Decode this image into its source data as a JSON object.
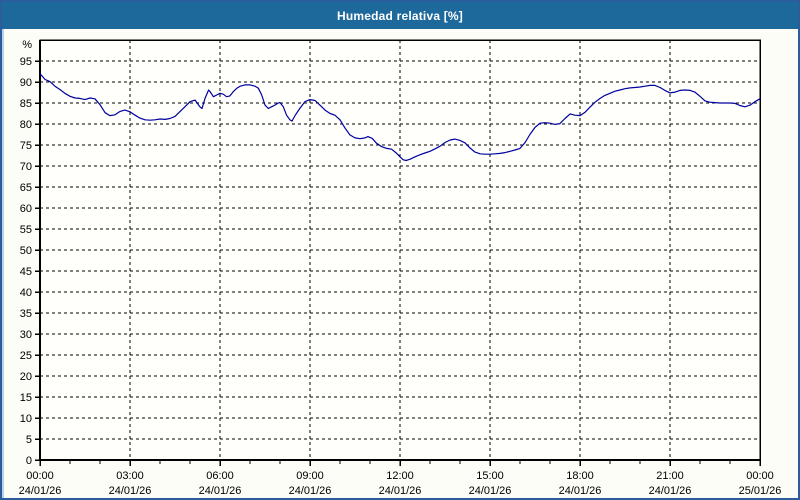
{
  "window": {
    "title": "Humedad relativa [%]",
    "titlebar_color": "#1e699c",
    "title_text_color": "#ffffff",
    "border_color": "#2b5c9c",
    "background_color": "#fbfdf6"
  },
  "chart_data": {
    "type": "line",
    "title": "Humedad relativa [%]",
    "ylabel": "%",
    "xlabel": "",
    "unit_label": "%",
    "xlim": [
      0,
      24
    ],
    "ylim": [
      0,
      100
    ],
    "y_tick_step": 5,
    "y_tick_max_labeled": 95,
    "x_major_tick_hours": 3,
    "x_minor_tick_hours": 1,
    "grid": {
      "style": "dashed",
      "color": "#000000",
      "horizontal": true,
      "vertical": true
    },
    "legend": "none",
    "line_color": "#0000a0",
    "plot_background": "#fffffb",
    "x_ticks": [
      {
        "hour": 0,
        "time": "00:00",
        "date": "24/01/26"
      },
      {
        "hour": 3,
        "time": "03:00",
        "date": "24/01/26"
      },
      {
        "hour": 6,
        "time": "06:00",
        "date": "24/01/26"
      },
      {
        "hour": 9,
        "time": "09:00",
        "date": "24/01/26"
      },
      {
        "hour": 12,
        "time": "12:00",
        "date": "24/01/26"
      },
      {
        "hour": 15,
        "time": "15:00",
        "date": "24/01/26"
      },
      {
        "hour": 18,
        "time": "18:00",
        "date": "24/01/26"
      },
      {
        "hour": 21,
        "time": "21:00",
        "date": "24/01/26"
      },
      {
        "hour": 24,
        "time": "00:00",
        "date": "25/01/26"
      }
    ],
    "series": [
      {
        "name": "Humedad relativa",
        "points": [
          [
            0.0,
            92.0
          ],
          [
            0.17,
            90.6
          ],
          [
            0.33,
            90.1
          ],
          [
            0.5,
            89.0
          ],
          [
            0.67,
            88.2
          ],
          [
            0.83,
            87.3
          ],
          [
            1.0,
            86.6
          ],
          [
            1.17,
            86.2
          ],
          [
            1.33,
            86.1
          ],
          [
            1.5,
            85.8
          ],
          [
            1.67,
            86.2
          ],
          [
            1.83,
            86.0
          ],
          [
            2.0,
            84.6
          ],
          [
            2.17,
            82.7
          ],
          [
            2.33,
            82.0
          ],
          [
            2.5,
            82.2
          ],
          [
            2.67,
            83.0
          ],
          [
            2.83,
            83.3
          ],
          [
            3.0,
            82.9
          ],
          [
            3.17,
            82.1
          ],
          [
            3.33,
            81.4
          ],
          [
            3.5,
            81.0
          ],
          [
            3.67,
            80.9
          ],
          [
            3.83,
            81.0
          ],
          [
            4.0,
            81.2
          ],
          [
            4.17,
            81.1
          ],
          [
            4.33,
            81.3
          ],
          [
            4.5,
            81.8
          ],
          [
            4.67,
            83.0
          ],
          [
            4.83,
            84.1
          ],
          [
            5.0,
            85.3
          ],
          [
            5.17,
            85.7
          ],
          [
            5.33,
            84.1
          ],
          [
            5.4,
            83.7
          ],
          [
            5.5,
            86.1
          ],
          [
            5.62,
            88.1
          ],
          [
            5.67,
            87.7
          ],
          [
            5.78,
            86.5
          ],
          [
            5.89,
            86.9
          ],
          [
            6.0,
            87.3
          ],
          [
            6.11,
            87.1
          ],
          [
            6.22,
            86.5
          ],
          [
            6.33,
            86.7
          ],
          [
            6.44,
            87.7
          ],
          [
            6.56,
            88.5
          ],
          [
            6.67,
            89.0
          ],
          [
            6.83,
            89.3
          ],
          [
            7.0,
            89.3
          ],
          [
            7.17,
            89.0
          ],
          [
            7.28,
            88.5
          ],
          [
            7.39,
            86.9
          ],
          [
            7.5,
            84.5
          ],
          [
            7.61,
            83.7
          ],
          [
            7.72,
            84.1
          ],
          [
            7.83,
            84.5
          ],
          [
            7.94,
            85.0
          ],
          [
            8.0,
            85.1
          ],
          [
            8.11,
            84.1
          ],
          [
            8.22,
            82.1
          ],
          [
            8.33,
            81.0
          ],
          [
            8.4,
            80.7
          ],
          [
            8.5,
            82.0
          ],
          [
            8.67,
            83.8
          ],
          [
            8.83,
            85.3
          ],
          [
            9.0,
            85.8
          ],
          [
            9.17,
            85.6
          ],
          [
            9.33,
            84.5
          ],
          [
            9.5,
            83.3
          ],
          [
            9.67,
            82.5
          ],
          [
            9.83,
            82.1
          ],
          [
            10.0,
            81.0
          ],
          [
            10.17,
            79.0
          ],
          [
            10.33,
            77.4
          ],
          [
            10.5,
            76.7
          ],
          [
            10.67,
            76.5
          ],
          [
            10.83,
            76.7
          ],
          [
            10.93,
            77.0
          ],
          [
            11.07,
            76.6
          ],
          [
            11.22,
            75.4
          ],
          [
            11.39,
            74.6
          ],
          [
            11.56,
            74.2
          ],
          [
            11.72,
            74.0
          ],
          [
            11.89,
            73.0
          ],
          [
            12.0,
            72.2
          ],
          [
            12.1,
            71.5
          ],
          [
            12.2,
            71.3
          ],
          [
            12.33,
            71.6
          ],
          [
            12.5,
            72.2
          ],
          [
            12.67,
            72.7
          ],
          [
            12.83,
            73.1
          ],
          [
            13.0,
            73.5
          ],
          [
            13.17,
            74.1
          ],
          [
            13.33,
            74.7
          ],
          [
            13.5,
            75.6
          ],
          [
            13.67,
            76.2
          ],
          [
            13.83,
            76.4
          ],
          [
            14.0,
            76.1
          ],
          [
            14.17,
            75.5
          ],
          [
            14.33,
            74.3
          ],
          [
            14.5,
            73.3
          ],
          [
            14.67,
            72.9
          ],
          [
            14.83,
            72.8
          ],
          [
            15.0,
            72.8
          ],
          [
            15.17,
            72.9
          ],
          [
            15.33,
            73.0
          ],
          [
            15.5,
            73.2
          ],
          [
            15.67,
            73.5
          ],
          [
            15.83,
            73.8
          ],
          [
            16.0,
            74.2
          ],
          [
            16.17,
            75.6
          ],
          [
            16.33,
            77.5
          ],
          [
            16.5,
            79.2
          ],
          [
            16.67,
            80.2
          ],
          [
            16.83,
            80.3
          ],
          [
            17.0,
            80.2
          ],
          [
            17.17,
            79.9
          ],
          [
            17.33,
            80.1
          ],
          [
            17.5,
            81.3
          ],
          [
            17.67,
            82.4
          ],
          [
            17.83,
            82.1
          ],
          [
            18.0,
            82.0
          ],
          [
            18.17,
            82.8
          ],
          [
            18.33,
            84.0
          ],
          [
            18.5,
            85.2
          ],
          [
            18.67,
            86.1
          ],
          [
            18.83,
            86.8
          ],
          [
            19.0,
            87.3
          ],
          [
            19.17,
            87.8
          ],
          [
            19.33,
            88.1
          ],
          [
            19.5,
            88.4
          ],
          [
            19.67,
            88.6
          ],
          [
            19.83,
            88.7
          ],
          [
            20.0,
            88.8
          ],
          [
            20.17,
            89.0
          ],
          [
            20.33,
            89.2
          ],
          [
            20.5,
            89.2
          ],
          [
            20.67,
            88.7
          ],
          [
            20.83,
            88.0
          ],
          [
            21.0,
            87.4
          ],
          [
            21.17,
            87.6
          ],
          [
            21.33,
            88.0
          ],
          [
            21.5,
            88.1
          ],
          [
            21.67,
            88.0
          ],
          [
            21.83,
            87.6
          ],
          [
            22.0,
            86.6
          ],
          [
            22.17,
            85.5
          ],
          [
            22.33,
            85.2
          ],
          [
            22.5,
            85.1
          ],
          [
            22.67,
            85.0
          ],
          [
            22.83,
            85.0
          ],
          [
            23.0,
            85.0
          ],
          [
            23.17,
            84.9
          ],
          [
            23.33,
            84.4
          ],
          [
            23.5,
            84.1
          ],
          [
            23.67,
            84.5
          ],
          [
            23.83,
            85.3
          ],
          [
            24.0,
            86.0
          ]
        ]
      }
    ]
  }
}
